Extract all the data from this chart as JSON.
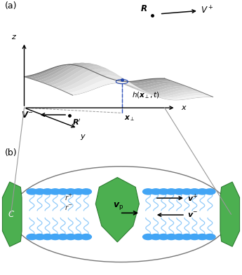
{
  "fig_width": 3.45,
  "fig_height": 3.93,
  "dpi": 100,
  "bg_color": "#ffffff",
  "panel_a_label": "(a)",
  "panel_b_label": "(b)",
  "green_protein_color": "#4caf50",
  "green_protein_edge": "#2e7d32",
  "blue_head_color": "#42a5f5",
  "blue_tail_color": "#90caf9",
  "ellipse_edge_color": "#777777",
  "conn_color": "#999999",
  "R_label": "$\\boldsymbol{R}$",
  "Vplus_label": "$V^+$",
  "Vminus_label": "$\\boldsymbol{V}^{-}$",
  "Rprime_label": "$\\boldsymbol{R}'$",
  "y_label": "$y$",
  "x_label": "$x$",
  "z_label": "$z$",
  "h_label": "$h(\\boldsymbol{x}_{\\perp},t)$",
  "xperp_label": "$\\boldsymbol{x}_{\\perp}$",
  "vp_label": "$\\boldsymbol{v}_{\\mathrm{p}}$",
  "vplus_label": "$\\boldsymbol{v}^{+}$",
  "vminus_label": "$\\boldsymbol{v}^{-}$",
  "rplus_label": "$r^{+}$",
  "rminus_label": "$r^{-}$",
  "C_label": "$C$"
}
